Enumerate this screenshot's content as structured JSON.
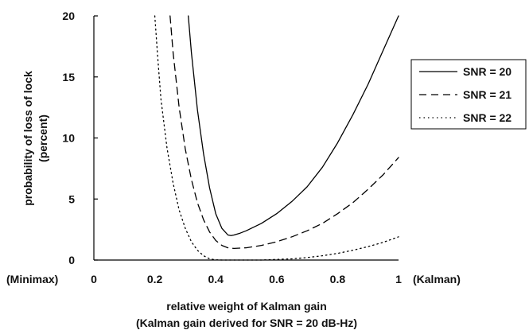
{
  "chart_data": {
    "type": "line",
    "title": "",
    "xlabel": "relative weight of Kalman gain",
    "xlabel2": "(Kalman gain derived for SNR = 20 dB-Hz)",
    "ylabel": "probability of loss of lock",
    "ylabel2": "(percent)",
    "xlim": [
      0,
      1
    ],
    "ylim": [
      0,
      20
    ],
    "xticks": [
      0,
      0.2,
      0.4,
      0.6,
      0.8,
      1
    ],
    "xtick_labels": [
      "0",
      "0.2",
      "0.4",
      "0.6",
      "0.8",
      "1"
    ],
    "yticks": [
      0,
      5,
      10,
      15,
      20
    ],
    "ytick_labels": [
      "0",
      "5",
      "10",
      "15",
      "20"
    ],
    "x_left_label": "(Minimax)",
    "x_right_label": "(Kalman)",
    "grid": false,
    "legend_position": "right",
    "series": [
      {
        "name": "SNR = 20",
        "style": "solid",
        "x": [
          0.31,
          0.32,
          0.34,
          0.36,
          0.38,
          0.4,
          0.42,
          0.44,
          0.45,
          0.46,
          0.48,
          0.5,
          0.55,
          0.6,
          0.65,
          0.7,
          0.75,
          0.8,
          0.85,
          0.9,
          0.95,
          1.0
        ],
        "y": [
          20,
          17.0,
          12.3,
          8.7,
          5.9,
          3.8,
          2.6,
          2.05,
          2.0,
          2.05,
          2.2,
          2.4,
          3.0,
          3.8,
          4.8,
          6.0,
          7.6,
          9.6,
          11.9,
          14.4,
          17.2,
          20.0
        ]
      },
      {
        "name": "SNR = 21",
        "style": "dashed",
        "x": [
          0.25,
          0.26,
          0.28,
          0.3,
          0.32,
          0.34,
          0.36,
          0.38,
          0.4,
          0.42,
          0.44,
          0.46,
          0.5,
          0.55,
          0.6,
          0.65,
          0.7,
          0.75,
          0.8,
          0.85,
          0.9,
          0.95,
          1.0
        ],
        "y": [
          20,
          17.0,
          12.5,
          9.1,
          6.6,
          4.7,
          3.3,
          2.3,
          1.6,
          1.2,
          1.0,
          0.95,
          1.0,
          1.2,
          1.5,
          1.9,
          2.4,
          3.0,
          3.8,
          4.7,
          5.8,
          7.0,
          8.4
        ]
      },
      {
        "name": "SNR = 22",
        "style": "dotted",
        "x": [
          0.2,
          0.21,
          0.22,
          0.24,
          0.26,
          0.28,
          0.3,
          0.32,
          0.34,
          0.36,
          0.38,
          0.4,
          0.42,
          0.45,
          0.5,
          0.55,
          0.6,
          0.65,
          0.7,
          0.75,
          0.8,
          0.85,
          0.9,
          0.95,
          1.0
        ],
        "y": [
          20,
          16.5,
          13.2,
          9.2,
          6.3,
          4.1,
          2.6,
          1.5,
          0.8,
          0.35,
          0.1,
          0.02,
          0.0,
          0.0,
          0.0,
          0.0,
          0.05,
          0.1,
          0.2,
          0.35,
          0.55,
          0.8,
          1.1,
          1.45,
          1.9
        ]
      }
    ]
  }
}
